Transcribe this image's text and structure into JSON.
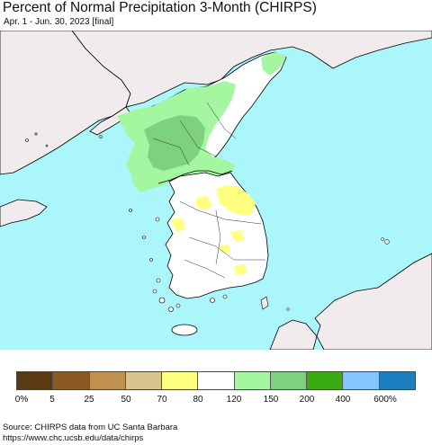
{
  "title": "Percent of Normal Precipitation 3-Month (CHIRPS)",
  "subtitle": "Apr. 1 - Jun. 30, 2023 [final]",
  "legend": {
    "colors": [
      "#5a3a12",
      "#8b5a24",
      "#c09050",
      "#d6c48c",
      "#ffff80",
      "#ffffff",
      "#a4f7a0",
      "#7fd27d",
      "#3aaa12",
      "#86c6ff",
      "#1d7fc0"
    ],
    "labels": [
      "0%",
      "5",
      "25",
      "50",
      "70",
      "80",
      "120",
      "150",
      "200",
      "400",
      "600%"
    ]
  },
  "source": {
    "line1": "Source: CHIRPS data from UC Santa Barbara",
    "line2": "https://www.chc.ucsb.edu/data/chirps"
  }
}
